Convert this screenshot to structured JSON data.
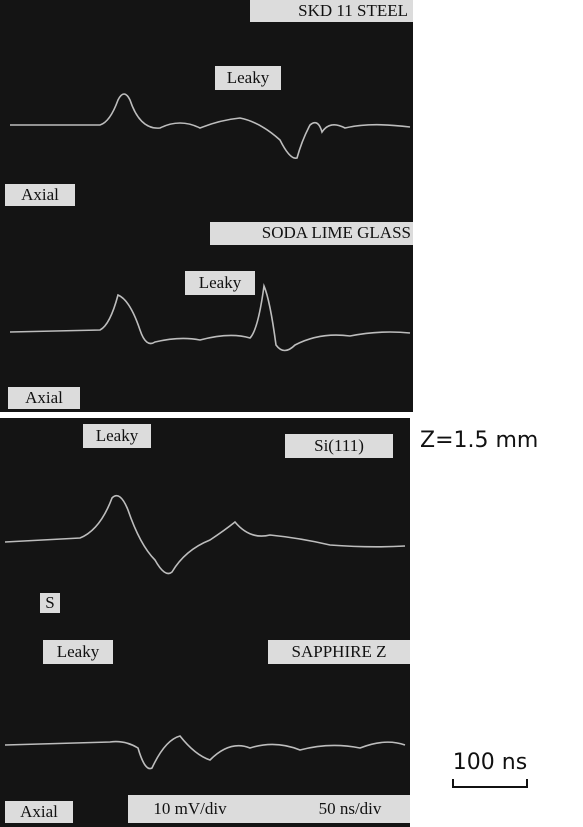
{
  "panels": [
    {
      "material": "SKD 11 STEEL",
      "leaky": "Leaky",
      "axial": "Axial"
    },
    {
      "material": "SODA LIME GLASS",
      "leaky": "Leaky",
      "axial": "Axial"
    },
    {
      "material": "Si(111)",
      "leaky": "Leaky",
      "extra": "S"
    },
    {
      "material": "SAPPHIRE Z",
      "leaky": "Leaky",
      "axial": "Axial",
      "settings": [
        "10 mV/div",
        "50 ns/div"
      ]
    }
  ],
  "depth_label": "Z=1.5 mm",
  "scale_label": "100 ns"
}
